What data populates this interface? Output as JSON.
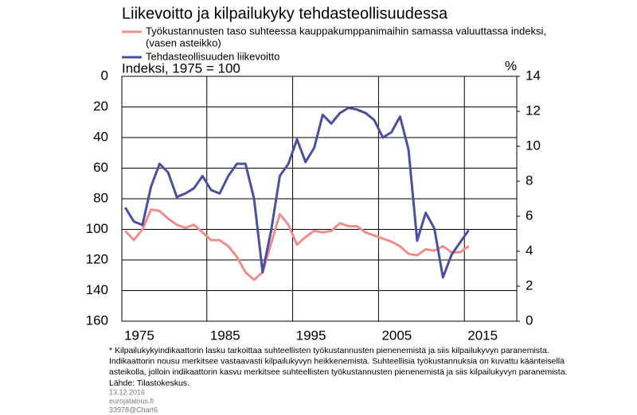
{
  "chart_data": {
    "type": "line",
    "title": "Liikevoitto ja kilpailukyky tehdasteollisuudessa",
    "ylabel": "Indeksi, 1975 = 100",
    "y2label": "%",
    "x": [
      1973,
      1974,
      1975,
      1976,
      1977,
      1978,
      1979,
      1980,
      1981,
      1982,
      1983,
      1984,
      1985,
      1986,
      1987,
      1988,
      1989,
      1990,
      1991,
      1992,
      1993,
      1994,
      1995,
      1996,
      1997,
      1998,
      1999,
      2000,
      2001,
      2002,
      2003,
      2004,
      2005,
      2006,
      2007,
      2008,
      2009,
      2010,
      2011,
      2012,
      2013
    ],
    "series": [
      {
        "name": "Työkustannusten taso suhteessa kauppakumppanimaihin samassa valuuttassa indeksi,",
        "name_line2": "(vasen asteikko)",
        "color": "#f08c8c",
        "values": [
          101,
          107,
          100,
          87,
          88,
          93,
          97,
          99,
          97,
          102,
          107,
          107,
          111,
          118,
          128,
          133,
          128,
          109,
          90,
          97,
          110,
          105,
          101,
          102,
          101,
          96,
          98,
          98,
          102,
          104,
          106,
          108,
          111,
          116,
          117,
          113,
          114,
          111,
          115,
          115,
          111
        ]
      },
      {
        "name": "Tehdasteollisuuden liikevoitto",
        "color": "#4b4fa0",
        "axis": "y2",
        "values": [
          6.5,
          5.7,
          5.5,
          7.7,
          9.0,
          8.5,
          7.1,
          7.3,
          7.6,
          8.3,
          7.5,
          7.3,
          8.3,
          9.0,
          9.0,
          7.0,
          2.8,
          5.2,
          8.3,
          9.0,
          10.4,
          9.1,
          9.9,
          11.8,
          11.3,
          11.9,
          12.2,
          12.1,
          11.9,
          11.5,
          10.5,
          10.8,
          11.7,
          9.8,
          4.6,
          6.2,
          5.3,
          2.5,
          3.8,
          4.5,
          5.2
        ]
      }
    ],
    "xlim": [
      1972.6,
      2018.6
    ],
    "xticks": [
      1975,
      1985,
      1995,
      2005,
      2015
    ],
    "xgrid": [
      1982.5,
      1992.5,
      2002.5,
      2012.5
    ],
    "ylim": [
      160,
      0
    ],
    "yticks": [
      0,
      20,
      40,
      60,
      80,
      100,
      120,
      140,
      160
    ],
    "y2lim": [
      0,
      14
    ],
    "y2ticks": [
      0,
      2,
      4,
      6,
      8,
      10,
      12,
      14
    ],
    "grid": true,
    "notes": [
      "* Kilpailukykyindikaattorin lasku tarkoittaa suhteellisten työkustannusten pienenemistä ja siis kilpailukyvyn paranemista.",
      "Indikaattorin nousu merkitsee vastaavasti kilpailukyvyn heikkenemistä. Suhteellisia työkustannuksia on kuvattu käänteisellä",
      "asteikolla, jolloin indikaattorin kasvu merkitsee suhteellisten työkustannusten pienenemistä ja siis kilpailukyvyn paranemista.",
      "Lähde: Tilastokeskus."
    ],
    "meta": [
      "13.12.2016",
      "eurojatalous.fi",
      "33978@Chart6"
    ]
  }
}
